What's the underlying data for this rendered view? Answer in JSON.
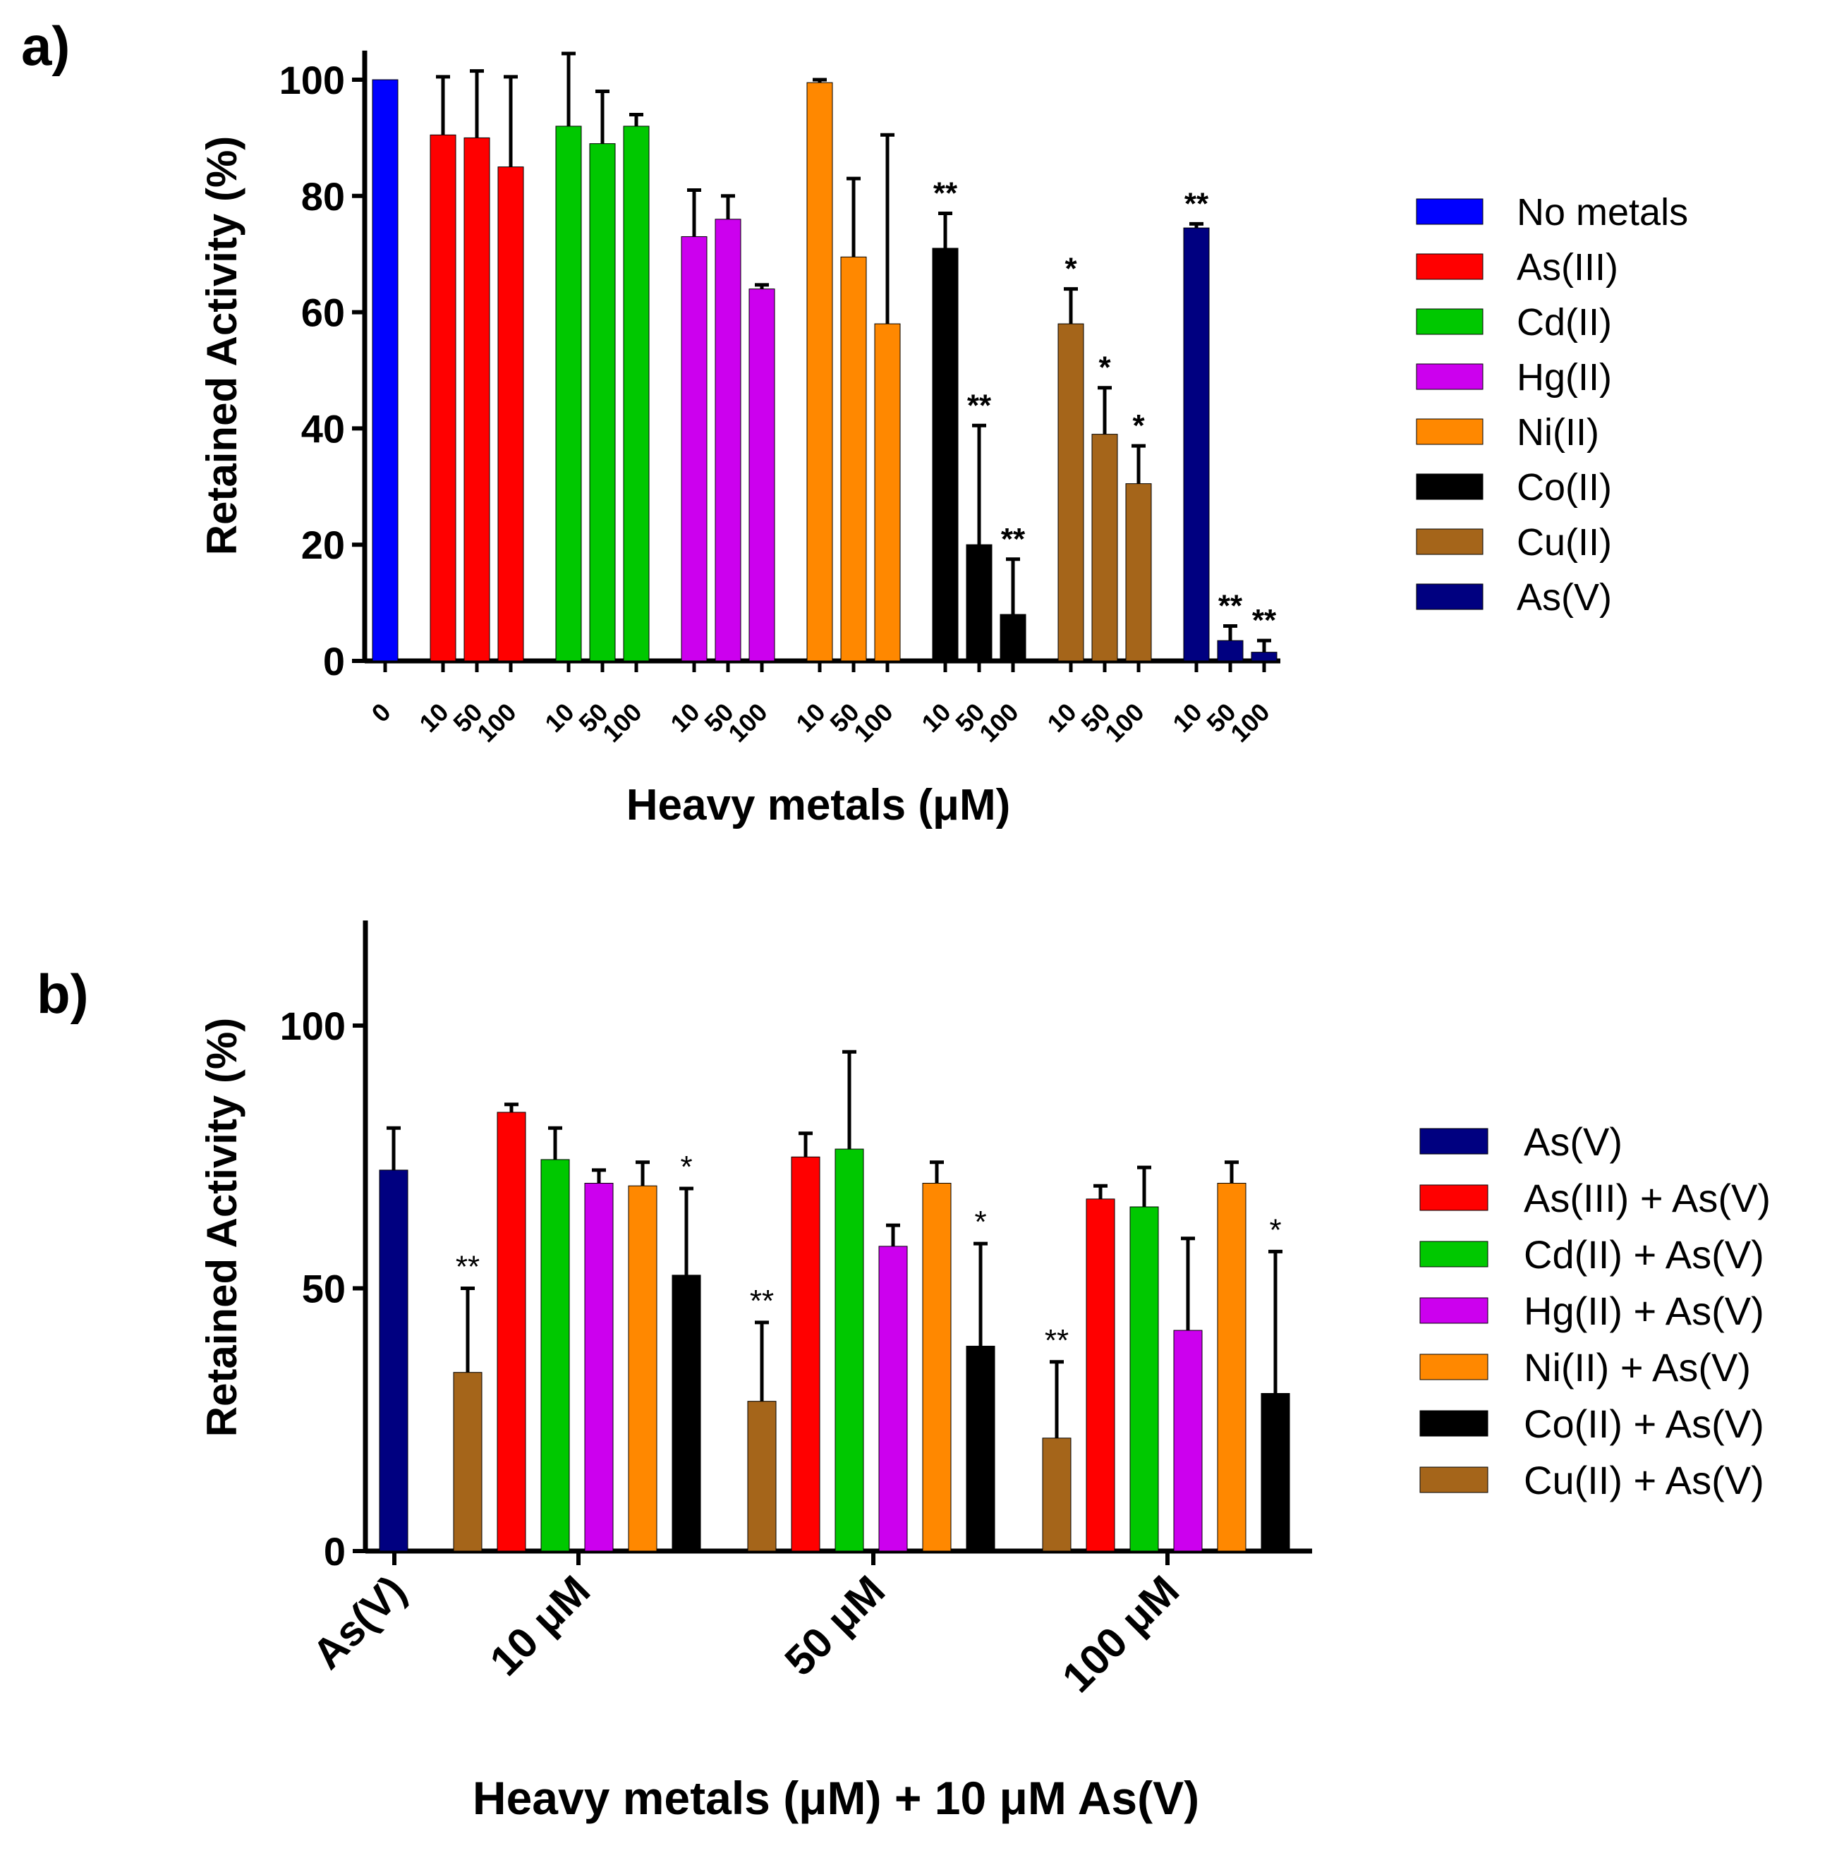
{
  "chart_data": [
    {
      "type": "bar",
      "panel_label": "a)",
      "xlabel": "Heavy metals (μM)",
      "ylabel": "Retained Activity (%)",
      "ylim": [
        0,
        105
      ],
      "yticks": [
        0,
        20,
        40,
        60,
        80,
        100
      ],
      "legend_position": "right",
      "groups": [
        {
          "name": "No metals",
          "color": "#0000ff",
          "doses": [
            "0"
          ],
          "values": [
            100
          ],
          "errors": [
            0
          ],
          "sig": [
            ""
          ]
        },
        {
          "name": "As(III)",
          "color": "#ff0000",
          "doses": [
            "10",
            "50",
            "100"
          ],
          "values": [
            90.5,
            90,
            85
          ],
          "errors": [
            10,
            11.5,
            15.5
          ],
          "sig": [
            "",
            "",
            ""
          ]
        },
        {
          "name": "Cd(II)",
          "color": "#00c800",
          "doses": [
            "10",
            "50",
            "100"
          ],
          "values": [
            92,
            89,
            92
          ],
          "errors": [
            12.5,
            9,
            2
          ],
          "sig": [
            "",
            "",
            ""
          ]
        },
        {
          "name": "Hg(II)",
          "color": "#cc00ee",
          "doses": [
            "10",
            "50",
            "100"
          ],
          "values": [
            73,
            76,
            64
          ],
          "errors": [
            8,
            4,
            0.7
          ],
          "sig": [
            "",
            "",
            ""
          ]
        },
        {
          "name": "Ni(II)",
          "color": "#ff8800",
          "doses": [
            "10",
            "50",
            "100"
          ],
          "values": [
            99.5,
            69.5,
            58
          ],
          "errors": [
            0.5,
            13.5,
            32.5
          ],
          "sig": [
            "",
            "",
            ""
          ]
        },
        {
          "name": "Co(II)",
          "color": "#000000",
          "doses": [
            "10",
            "50",
            "100"
          ],
          "values": [
            71,
            20,
            8
          ],
          "errors": [
            6,
            20.5,
            9.5
          ],
          "sig": [
            "**",
            "**",
            "**"
          ]
        },
        {
          "name": "Cu(II)",
          "color": "#a5651a",
          "doses": [
            "10",
            "50",
            "100"
          ],
          "values": [
            58,
            39,
            30.5
          ],
          "errors": [
            6,
            8,
            6.5
          ],
          "sig": [
            "*",
            "*",
            "*"
          ]
        },
        {
          "name": "As(V)",
          "color": "#000080",
          "doses": [
            "10",
            "50",
            "100"
          ],
          "values": [
            74.5,
            3.5,
            1.5
          ],
          "errors": [
            0.7,
            2.5,
            2
          ],
          "sig": [
            "**",
            "**",
            "**"
          ]
        }
      ]
    },
    {
      "type": "bar",
      "panel_label": "b)",
      "xlabel": "Heavy metals (μM) + 10 μM As(V)",
      "ylabel": "Retained Activity (%)",
      "ylim": [
        0,
        120
      ],
      "yticks": [
        0,
        50,
        100
      ],
      "legend_position": "right",
      "categories": [
        "As(V)",
        "10 μM",
        "50 μM",
        "100 μM"
      ],
      "series": [
        {
          "name": "As(V)",
          "color": "#000080",
          "values": [
            72.5,
            null,
            null,
            null
          ],
          "errors": [
            8,
            null,
            null,
            null
          ],
          "sig": [
            "",
            "",
            "",
            ""
          ]
        },
        {
          "name": "Cu(II) + As(V)",
          "color": "#a5651a",
          "values": [
            null,
            34,
            28.5,
            21.5
          ],
          "errors": [
            null,
            16,
            15,
            14.5
          ],
          "sig": [
            "",
            "**",
            "**",
            "**"
          ]
        },
        {
          "name": "As(III) + As(V)",
          "color": "#ff0000",
          "values": [
            null,
            83.5,
            75,
            67
          ],
          "errors": [
            null,
            1.5,
            4.5,
            2.5
          ],
          "sig": [
            "",
            "",
            "",
            ""
          ]
        },
        {
          "name": "Cd(II) + As(V)",
          "color": "#00c800",
          "values": [
            null,
            74.5,
            76.5,
            65.5
          ],
          "errors": [
            null,
            6,
            18.5,
            7.5
          ],
          "sig": [
            "",
            "",
            "",
            ""
          ]
        },
        {
          "name": "Hg(II) + As(V)",
          "color": "#cc00ee",
          "values": [
            null,
            70,
            58,
            42
          ],
          "errors": [
            null,
            2.5,
            4,
            17.5
          ],
          "sig": [
            "",
            "",
            "",
            ""
          ]
        },
        {
          "name": "Ni(II) + As(V)",
          "color": "#ff8800",
          "values": [
            null,
            69.5,
            70,
            70
          ],
          "errors": [
            null,
            4.5,
            4,
            4
          ],
          "sig": [
            "",
            "",
            "",
            ""
          ]
        },
        {
          "name": "Co(II) + As(V)",
          "color": "#000000",
          "values": [
            null,
            52.5,
            39,
            30
          ],
          "errors": [
            null,
            16.5,
            19.5,
            27
          ],
          "sig": [
            "",
            "*",
            "*",
            "*"
          ]
        }
      ],
      "legend_order": [
        "As(V)",
        "As(III) + As(V)",
        "Cd(II) + As(V)",
        "Hg(II) + As(V)",
        "Ni(II) + As(V)",
        "Co(II) + As(V)",
        "Cu(II) + As(V)"
      ]
    }
  ]
}
